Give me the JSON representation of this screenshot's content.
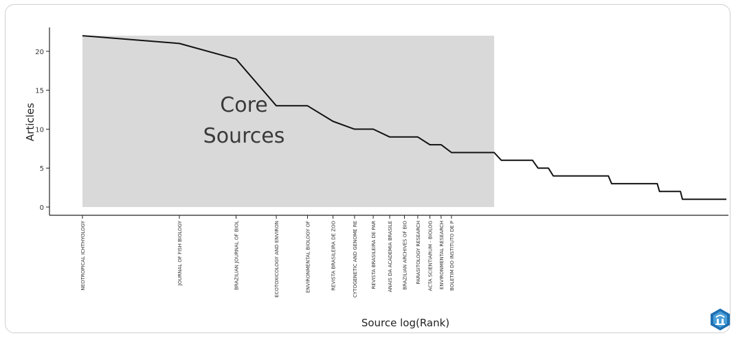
{
  "chart_data": {
    "type": "line",
    "xlabel": "Source log(Rank)",
    "ylabel": "Articles",
    "ylim": [
      0,
      22
    ],
    "x_scale": "log",
    "yticks": [
      0,
      5,
      10,
      15,
      20
    ],
    "grid": false,
    "annotation": "Core Sources",
    "core_zone": {
      "rank_from": 1,
      "rank_to": 19,
      "ymax": 22
    },
    "x_tick_sources": [
      {
        "rank": 1,
        "label": "NEOTROPICAL ICHTHYOLOGY"
      },
      {
        "rank": 2,
        "label": "JOURNAL OF FISH BIOLOGY"
      },
      {
        "rank": 3,
        "label": "BRAZILIAN JOURNAL OF BIOL"
      },
      {
        "rank": 4,
        "label": "ECOTOXICOLOGY AND ENVIRON"
      },
      {
        "rank": 5,
        "label": "ENVIRONMENTAL BIOLOGY OF"
      },
      {
        "rank": 6,
        "label": "REVISTA BRASILEIRA DE ZOO"
      },
      {
        "rank": 7,
        "label": "CYTOGENETIC AND GENOME RE"
      },
      {
        "rank": 8,
        "label": "REVISTA BRASILEIRA DE PAR"
      },
      {
        "rank": 9,
        "label": "ANAIS DA ACADEMIA BRASILE"
      },
      {
        "rank": 10,
        "label": "BRAZILIAN ARCHIVES OF BIO"
      },
      {
        "rank": 11,
        "label": "PARASITOLOGY RESEARCH"
      },
      {
        "rank": 12,
        "label": "ACTA SCIENTIARUM - BIOLOG"
      },
      {
        "rank": 13,
        "label": "ENVIRONMENTAL RESEARCH"
      },
      {
        "rank": 14,
        "label": "BOLETIM DO INSTITUTO DE P"
      }
    ],
    "x": [
      1,
      2,
      3,
      4,
      5,
      6,
      7,
      8,
      9,
      10,
      11,
      12,
      13,
      14,
      15,
      16,
      17,
      18,
      19,
      20,
      21,
      22,
      23,
      24,
      25,
      26,
      27,
      28,
      29,
      30,
      31,
      32,
      33,
      34,
      35,
      36,
      37,
      38,
      39,
      40,
      41,
      42,
      43,
      44,
      45,
      46,
      47,
      48,
      49,
      50,
      51,
      52,
      53,
      54,
      55,
      56,
      57,
      58,
      59,
      60,
      61,
      62,
      63,
      64,
      65,
      66,
      67,
      68,
      69,
      70,
      71,
      72,
      73,
      74,
      75,
      76,
      77,
      78,
      79,
      80,
      81,
      82,
      83,
      84,
      85,
      86,
      87,
      88,
      89,
      90,
      91,
      92,
      93,
      94,
      95,
      96,
      97,
      98,
      99,
      100
    ],
    "y": [
      22,
      21,
      19,
      13,
      13,
      11,
      10,
      10,
      9,
      9,
      9,
      8,
      8,
      7,
      7,
      7,
      7,
      7,
      7,
      6,
      6,
      6,
      6,
      6,
      6,
      5,
      5,
      5,
      4,
      4,
      4,
      4,
      4,
      4,
      4,
      4,
      4,
      4,
      4,
      4,
      4,
      4,
      4,
      3,
      3,
      3,
      3,
      3,
      3,
      3,
      3,
      3,
      3,
      3,
      3,
      3,
      3,
      3,
      3,
      3,
      3,
      2,
      2,
      2,
      2,
      2,
      2,
      2,
      2,
      2,
      2,
      2,
      1,
      1,
      1,
      1,
      1,
      1,
      1,
      1,
      1,
      1,
      1,
      1,
      1,
      1,
      1,
      1,
      1,
      1,
      1,
      1,
      1,
      1,
      1,
      1,
      1,
      1,
      1,
      1
    ]
  }
}
